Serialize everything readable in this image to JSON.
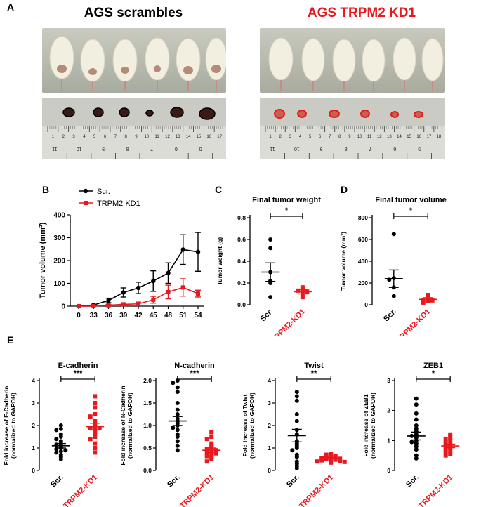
{
  "panel_labels": {
    "A": "A",
    "B": "B",
    "C": "C",
    "D": "D",
    "E": "E"
  },
  "panel_a": {
    "left_title": "AGS scrambles",
    "right_title": "AGS TRPM2 KD1",
    "left_title_color": "#000000",
    "right_title_color": "#e8191e",
    "left_ruler_numbers": [
      "1",
      "2",
      "3",
      "4",
      "5",
      "6",
      "7",
      "8",
      "9",
      "10",
      "11",
      "12",
      "13",
      "14",
      "15",
      "16",
      "17"
    ],
    "right_ruler_numbers": [
      "1",
      "2",
      "3",
      "4",
      "5",
      "6",
      "7",
      "8",
      "9",
      "10",
      "11",
      "12",
      "13",
      "14",
      "15",
      "16",
      "17",
      "18"
    ],
    "left_ruler_inverted": [
      "11",
      "10",
      "9",
      "8",
      "7",
      "6",
      "5"
    ],
    "right_ruler_inverted": [
      "11",
      "10",
      "9",
      "8",
      "7",
      "6",
      "5"
    ]
  },
  "colors": {
    "scr": "#000000",
    "kd": "#e8191e"
  },
  "chart_data": [
    {
      "id": "B",
      "type": "line",
      "title": "",
      "xlabel": "",
      "ylabel": "Tumor volume (mm³)",
      "categories": [
        "0",
        "33",
        "36",
        "39",
        "42",
        "45",
        "48",
        "51",
        "54"
      ],
      "ylim": [
        0,
        400
      ],
      "yticks": [
        "0",
        "100",
        "200",
        "300",
        "400"
      ],
      "legend_position": "top-left",
      "series": [
        {
          "name": "Scr.",
          "color": "#000000",
          "values": [
            0,
            5,
            25,
            60,
            80,
            110,
            145,
            248,
            238
          ],
          "errors": [
            0,
            3,
            10,
            20,
            25,
            45,
            45,
            65,
            85
          ]
        },
        {
          "name": "TRPM2 KD1",
          "color": "#e8191e",
          "values": [
            0,
            0,
            4,
            8,
            10,
            28,
            62,
            82,
            55
          ],
          "errors": [
            0,
            2,
            4,
            5,
            8,
            15,
            30,
            38,
            15
          ]
        }
      ]
    },
    {
      "id": "C",
      "type": "scatter",
      "title": "Final tumor weight",
      "ylabel": "Tumor weight (g)",
      "categories": [
        "Scr.",
        "TRPM2-KD1"
      ],
      "ylim": [
        0,
        0.8
      ],
      "yticks": [
        "0.0",
        "0.2",
        "0.4",
        "0.6",
        "0.8"
      ],
      "significance": "*",
      "groups": [
        {
          "name": "Scr.",
          "color": "#000000",
          "marker": "circle",
          "mean": 0.3,
          "sem": 0.085,
          "points": [
            0.6,
            0.52,
            0.3,
            0.22,
            0.2,
            0.07
          ]
        },
        {
          "name": "TRPM2-KD1",
          "color": "#e8191e",
          "marker": "square",
          "mean": 0.12,
          "sem": 0.02,
          "points": [
            0.16,
            0.14,
            0.13,
            0.12,
            0.1,
            0.07
          ]
        }
      ]
    },
    {
      "id": "D",
      "type": "scatter",
      "title": "Final tumor volume",
      "ylabel": "Tumor volume (mm³)",
      "categories": [
        "Scr.",
        "TRPM2-KD1"
      ],
      "ylim": [
        0,
        800
      ],
      "yticks": [
        "0",
        "200",
        "400",
        "600",
        "800"
      ],
      "significance": "*",
      "groups": [
        {
          "name": "Scr.",
          "color": "#000000",
          "marker": "circle",
          "mean": 240,
          "sem": 80,
          "points": [
            650,
            245,
            230,
            160,
            80
          ]
        },
        {
          "name": "TRPM2-KD1",
          "color": "#e8191e",
          "marker": "square",
          "mean": 50,
          "sem": 15,
          "points": [
            90,
            55,
            45,
            40,
            35,
            20
          ]
        }
      ]
    },
    {
      "id": "E1",
      "type": "scatter",
      "title": "E-cadherin",
      "ylabel": "Fold increase of E-Cadherin (normalized to GAPDH)",
      "categories": [
        "Scr.",
        "TRPM2-KD1"
      ],
      "ylim": [
        0,
        4
      ],
      "yticks": [
        "0",
        "1",
        "2",
        "3",
        "4"
      ],
      "significance": "***",
      "groups": [
        {
          "name": "Scr.",
          "color": "#000000",
          "marker": "circle",
          "mean": 1.1,
          "sem": 0.1,
          "points": [
            2.0,
            1.85,
            1.8,
            1.6,
            1.5,
            1.4,
            1.3,
            1.2,
            1.15,
            1.05,
            1.0,
            0.95,
            0.9,
            0.85,
            0.8,
            0.7,
            0.6,
            0.5
          ]
        },
        {
          "name": "TRPM2-KD1",
          "color": "#e8191e",
          "marker": "square",
          "mean": 1.95,
          "sem": 0.15,
          "points": [
            3.3,
            3.0,
            2.8,
            2.5,
            2.4,
            2.2,
            2.1,
            2.0,
            1.9,
            1.9,
            1.8,
            1.7,
            1.6,
            1.5,
            1.4,
            1.2,
            1.0,
            0.8
          ]
        }
      ]
    },
    {
      "id": "E2",
      "type": "scatter",
      "title": "N-cadherin",
      "ylabel": "Fold increase of N-Cadherin (normalized to GAPDH)",
      "categories": [
        "Scr.",
        "TRPM2-KD1"
      ],
      "ylim": [
        0,
        2.0
      ],
      "yticks": [
        "0.0",
        "0.5",
        "1.0",
        "1.5",
        "2.0"
      ],
      "significance": "***",
      "groups": [
        {
          "name": "Scr.",
          "color": "#000000",
          "marker": "circle",
          "mean": 1.1,
          "sem": 0.1,
          "points": [
            2.0,
            1.95,
            1.85,
            1.75,
            1.5,
            1.35,
            1.25,
            1.15,
            1.1,
            1.05,
            1.0,
            0.95,
            0.9,
            0.8,
            0.75,
            0.65,
            0.55,
            0.45
          ]
        },
        {
          "name": "TRPM2-KD1",
          "color": "#e8191e",
          "marker": "square",
          "mean": 0.45,
          "sem": 0.05,
          "points": [
            0.85,
            0.75,
            0.7,
            0.6,
            0.55,
            0.5,
            0.48,
            0.45,
            0.42,
            0.4,
            0.38,
            0.35,
            0.32,
            0.3,
            0.25,
            0.2
          ]
        }
      ]
    },
    {
      "id": "E3",
      "type": "scatter",
      "title": "Twist",
      "ylabel": "Fold increase of Twist (normalized to GAPDH)",
      "categories": [
        "Scr.",
        "TRPM2-KD1"
      ],
      "ylim": [
        0,
        4
      ],
      "yticks": [
        "0",
        "1",
        "2",
        "3",
        "4"
      ],
      "significance": "**",
      "groups": [
        {
          "name": "Scr.",
          "color": "#000000",
          "marker": "circle",
          "mean": 1.55,
          "sem": 0.28,
          "points": [
            3.5,
            3.3,
            3.1,
            2.5,
            2.2,
            1.8,
            1.6,
            1.3,
            1.2,
            1.1,
            1.0,
            0.9,
            0.7,
            0.6,
            0.4,
            0.3,
            0.2,
            0.1
          ]
        },
        {
          "name": "TRPM2-KD1",
          "color": "#e8191e",
          "marker": "square",
          "mean": 0.55,
          "sem": 0.04,
          "points": [
            0.75,
            0.7,
            0.65,
            0.62,
            0.6,
            0.58,
            0.55,
            0.52,
            0.5,
            0.5,
            0.48,
            0.45,
            0.42,
            0.4,
            0.38,
            0.35
          ]
        }
      ]
    },
    {
      "id": "E4",
      "type": "scatter",
      "title": "ZEB1",
      "ylabel": "Fold increase of ZEB1 (normalized to GAPDH)",
      "categories": [
        "Scr.",
        "TRPM2-KD1"
      ],
      "ylim": [
        0,
        3
      ],
      "yticks": [
        "0",
        "1",
        "2",
        "3"
      ],
      "significance": "*",
      "groups": [
        {
          "name": "Scr.",
          "color": "#000000",
          "marker": "circle",
          "mean": 1.15,
          "sem": 0.13,
          "points": [
            2.4,
            2.2,
            1.9,
            1.7,
            1.5,
            1.4,
            1.3,
            1.2,
            1.15,
            1.1,
            1.0,
            0.95,
            0.9,
            0.8,
            0.7,
            0.5,
            0.4
          ]
        },
        {
          "name": "TRPM2-KD1",
          "color": "#e8191e",
          "marker": "square",
          "mean": 0.82,
          "sem": 0.06,
          "points": [
            1.2,
            1.1,
            1.05,
            1.0,
            0.95,
            0.9,
            0.85,
            0.8,
            0.8,
            0.75,
            0.7,
            0.65,
            0.6,
            0.55,
            0.5
          ]
        }
      ]
    }
  ]
}
